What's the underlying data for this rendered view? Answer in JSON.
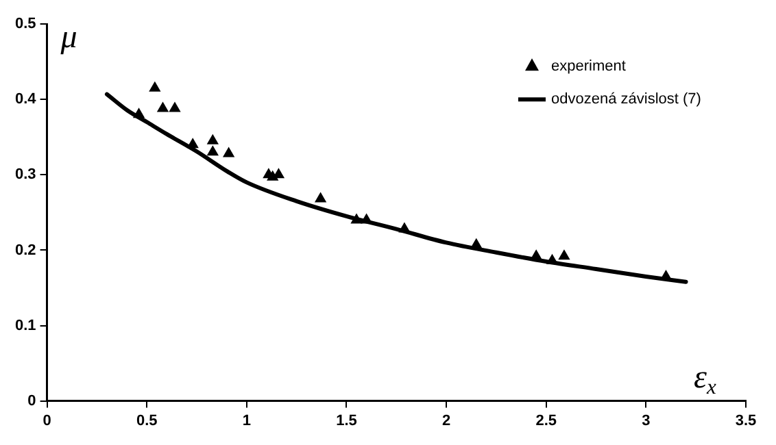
{
  "chart_data": {
    "type": "scatter",
    "xlabel": "ε$_{x}$",
    "ylabel": "μ",
    "xlim": [
      0,
      3.5
    ],
    "ylim": [
      0,
      0.5
    ],
    "xticks": [
      0,
      0.5,
      1,
      1.5,
      2,
      2.5,
      3,
      3.5
    ],
    "yticks": [
      0,
      0.1,
      0.2,
      0.3,
      0.4,
      0.5
    ],
    "grid": false,
    "legend": "top right",
    "series": [
      {
        "name": "experiment",
        "type": "scatter",
        "marker": "triangle",
        "color": "#000000",
        "x": [
          0.46,
          0.54,
          0.58,
          0.64,
          0.73,
          0.83,
          0.83,
          0.91,
          1.11,
          1.13,
          1.16,
          1.37,
          1.55,
          1.6,
          1.79,
          2.15,
          2.45,
          2.53,
          2.59,
          3.1
        ],
        "values": [
          0.38,
          0.415,
          0.388,
          0.388,
          0.34,
          0.345,
          0.33,
          0.328,
          0.3,
          0.297,
          0.3,
          0.268,
          0.24,
          0.24,
          0.228,
          0.207,
          0.192,
          0.186,
          0.192,
          0.165
        ]
      },
      {
        "name": "odvozená závislost (7)",
        "type": "line",
        "marker": "none",
        "line_style": "solid",
        "color": "#000000",
        "x": [
          0.3,
          0.4,
          0.5,
          0.6,
          0.75,
          0.9,
          1,
          1.25,
          1.5,
          1.75,
          2,
          2.25,
          2.5,
          2.75,
          3,
          3.2
        ],
        "values": [
          0.407,
          0.386,
          0.37,
          0.354,
          0.331,
          0.305,
          0.29,
          0.265,
          0.245,
          0.228,
          0.21,
          0.197,
          0.185,
          0.175,
          0.165,
          0.158
        ]
      }
    ]
  }
}
